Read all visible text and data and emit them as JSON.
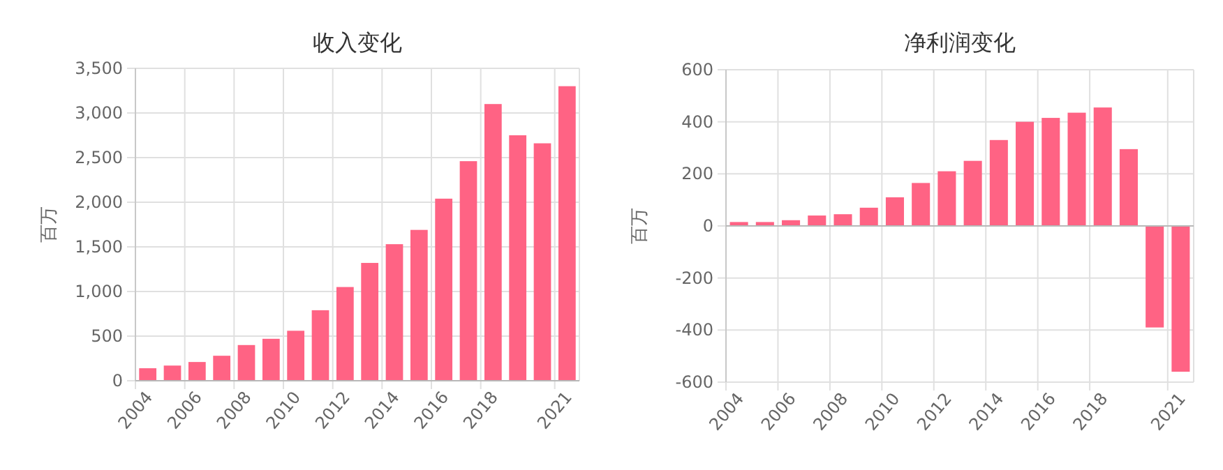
{
  "chart_data": [
    {
      "type": "bar",
      "title": "收入变化",
      "ylabel": "百万",
      "categories": [
        "2004",
        null,
        "2006",
        null,
        "2008",
        null,
        "2010",
        null,
        "2012",
        null,
        "2014",
        null,
        "2016",
        null,
        "2018",
        null,
        null,
        "2021"
      ],
      "values": [
        140,
        170,
        210,
        280,
        400,
        470,
        560,
        790,
        1050,
        1320,
        1530,
        1690,
        2040,
        2460,
        3100,
        2750,
        2660,
        3300
      ],
      "color": "#ff6384",
      "ylim": [
        0,
        3500
      ],
      "yticks": [
        0,
        500,
        {
          "value": 1000,
          "label": "1,000"
        },
        {
          "value": 1500,
          "label": "1,500"
        },
        {
          "value": 2000,
          "label": "2,000"
        },
        {
          "value": 2500,
          "label": "2,500"
        },
        {
          "value": 3000,
          "label": "3,000"
        },
        {
          "value": 3500,
          "label": "3,500"
        }
      ],
      "grid": true
    },
    {
      "type": "bar",
      "title": "净利润变化",
      "ylabel": "百万",
      "categories": [
        "2004",
        null,
        "2006",
        null,
        "2008",
        null,
        "2010",
        null,
        "2012",
        null,
        "2014",
        null,
        "2016",
        null,
        "2018",
        null,
        null,
        "2021"
      ],
      "values": [
        15,
        15,
        22,
        40,
        45,
        70,
        110,
        165,
        210,
        250,
        330,
        400,
        415,
        435,
        455,
        295,
        -390,
        -560
      ],
      "color": "#ff6384",
      "ylim": [
        -600,
        600
      ],
      "yticks": [
        -600,
        -400,
        -200,
        0,
        200,
        400,
        600
      ],
      "grid": true
    }
  ]
}
